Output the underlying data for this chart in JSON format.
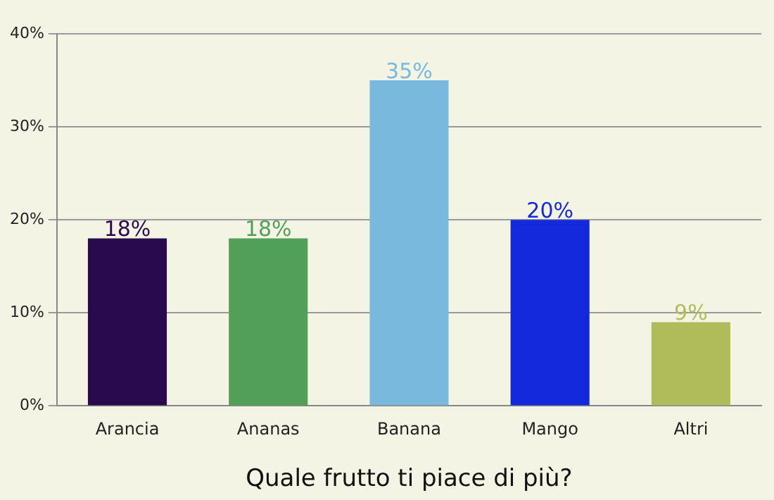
{
  "chart_data": {
    "type": "bar",
    "xlabel": "Quale frutto ti piace di più?",
    "categories": [
      "Arancia",
      "Ananas",
      "Banana",
      "Mango",
      "Altri"
    ],
    "values": [
      18,
      18,
      35,
      20,
      9
    ],
    "colors": [
      "#2a0a4f",
      "#52a058",
      "#7ab9de",
      "#1428dc",
      "#b0bc5a"
    ],
    "value_labels": [
      "18%",
      "18%",
      "35%",
      "20%",
      "9%"
    ],
    "ylim": [
      0,
      40
    ],
    "yticks": [
      {
        "value": 0,
        "label": "0%"
      },
      {
        "value": 10,
        "label": "10%"
      },
      {
        "value": 20,
        "label": "20%"
      },
      {
        "value": 30,
        "label": "30%"
      },
      {
        "value": 40,
        "label": "40%"
      }
    ],
    "grid": "y",
    "legend": false
  }
}
